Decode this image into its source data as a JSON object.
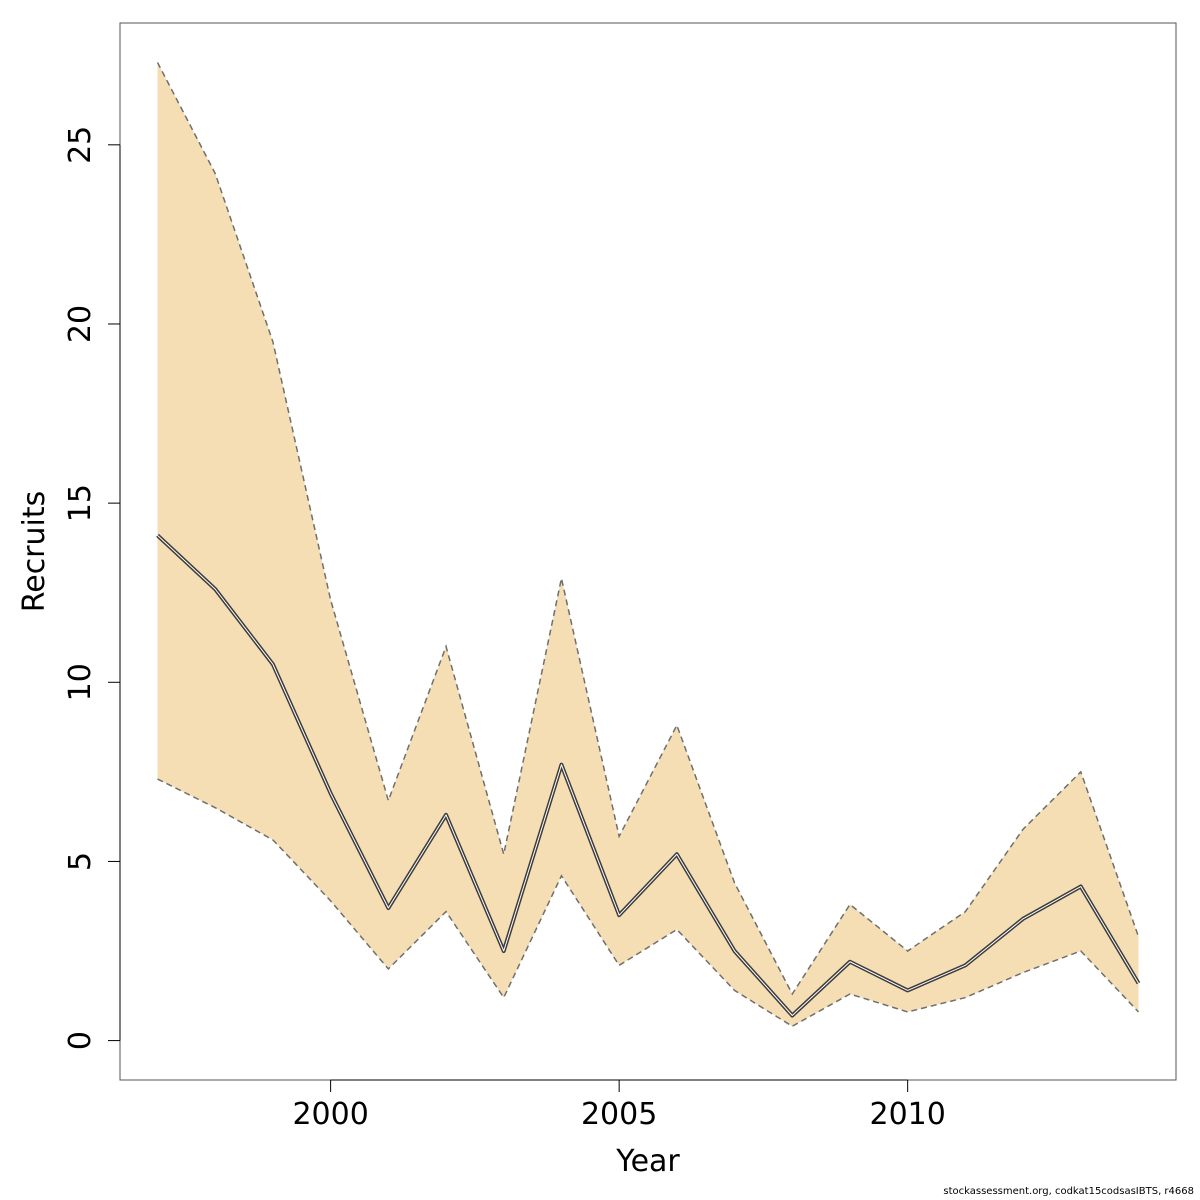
{
  "chart_data": {
    "type": "area",
    "title": "",
    "xlabel": "Year",
    "ylabel": "Recruits",
    "xlim": [
      1996.35,
      2014.65
    ],
    "ylim": [
      -1.1,
      28.4
    ],
    "x_ticks": [
      2000,
      2005,
      2010
    ],
    "x_tick_labels": [
      "2000",
      "2005",
      "2010"
    ],
    "y_ticks": [
      0,
      5,
      10,
      15,
      20,
      25
    ],
    "y_tick_labels": [
      "0",
      "5",
      "10",
      "15",
      "20",
      "25"
    ],
    "grid": false,
    "legend": "none",
    "x": [
      1997,
      1998,
      1999,
      2000,
      2001,
      2002,
      2003,
      2004,
      2005,
      2006,
      2007,
      2008,
      2009,
      2010,
      2011,
      2012,
      2013,
      2014
    ],
    "series": [
      {
        "role": "estimate",
        "values": [
          14.1,
          12.6,
          10.5,
          6.9,
          3.7,
          6.3,
          2.5,
          7.7,
          3.5,
          5.2,
          2.5,
          0.7,
          2.2,
          1.4,
          2.1,
          3.4,
          4.3,
          1.6
        ]
      },
      {
        "role": "upper",
        "values": [
          27.3,
          24.2,
          19.5,
          12.3,
          6.7,
          11.0,
          5.2,
          12.9,
          5.7,
          8.8,
          4.4,
          1.3,
          3.8,
          2.5,
          3.6,
          5.9,
          7.5,
          2.9
        ]
      },
      {
        "role": "lower",
        "values": [
          7.3,
          6.5,
          5.6,
          3.9,
          2.0,
          3.6,
          1.2,
          4.6,
          2.1,
          3.1,
          1.4,
          0.4,
          1.3,
          0.8,
          1.2,
          1.9,
          2.5,
          0.8
        ]
      }
    ],
    "colors": {
      "band_fill": "#f5deb3",
      "band_edge": "#6f6f6f",
      "estimate_line": "#3c3c3c",
      "estimate_inner": "#ffffff",
      "axis": "#000000",
      "frame": "#555555"
    }
  },
  "footer": {
    "note": "stockassessment.org, codkat15codsasIBTS, r4668"
  }
}
